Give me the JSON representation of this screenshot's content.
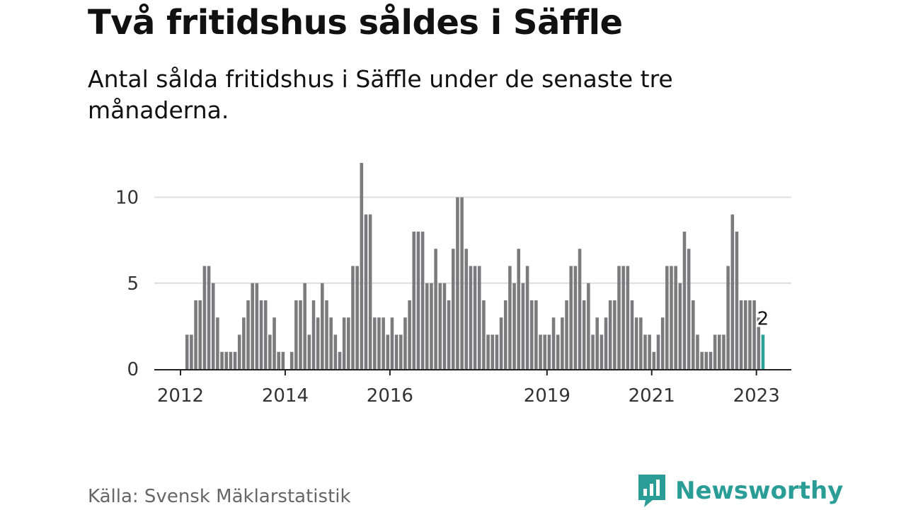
{
  "title": "Två fritidshus såldes i Säffle",
  "subtitle": "Antal sålda fritidshus i Säffle under de senaste tre månaderna.",
  "source": "Källa: Svensk Mäklarstatistik",
  "brand": "Newsworthy",
  "colors": {
    "bar": "#7b7a7c",
    "highlight": "#2aa198",
    "grid": "#dddddd",
    "axis": "#222222",
    "brand": "#2a9d96"
  },
  "chart_data": {
    "type": "bar",
    "title": "Två fritidshus såldes i Säffle",
    "xlabel": "",
    "ylabel": "",
    "ylim": [
      0,
      12
    ],
    "yticks": [
      0,
      5,
      10
    ],
    "xlim": [
      "2011-07",
      "2023-08"
    ],
    "xticks": [
      "2012",
      "2014",
      "2016",
      "2019",
      "2021",
      "2023"
    ],
    "grid": true,
    "legend": "none",
    "highlight": {
      "x": "2023-02",
      "value": 2,
      "label": "2"
    },
    "x": [
      "2012-02",
      "2012-03",
      "2012-04",
      "2012-05",
      "2012-06",
      "2012-07",
      "2012-08",
      "2012-09",
      "2012-10",
      "2012-11",
      "2012-12",
      "2013-01",
      "2013-02",
      "2013-03",
      "2013-04",
      "2013-05",
      "2013-06",
      "2013-07",
      "2013-08",
      "2013-09",
      "2013-10",
      "2013-11",
      "2013-12",
      "2014-01",
      "2014-02",
      "2014-03",
      "2014-04",
      "2014-05",
      "2014-06",
      "2014-07",
      "2014-08",
      "2014-09",
      "2014-10",
      "2014-11",
      "2014-12",
      "2015-01",
      "2015-02",
      "2015-03",
      "2015-04",
      "2015-05",
      "2015-06",
      "2015-07",
      "2015-08",
      "2015-09",
      "2015-10",
      "2015-11",
      "2015-12",
      "2016-01",
      "2016-02",
      "2016-03",
      "2016-04",
      "2016-05",
      "2016-06",
      "2016-07",
      "2016-08",
      "2016-09",
      "2016-10",
      "2016-11",
      "2016-12",
      "2017-01",
      "2017-02",
      "2017-03",
      "2017-04",
      "2017-05",
      "2017-06",
      "2017-07",
      "2017-08",
      "2017-09",
      "2017-10",
      "2017-11",
      "2017-12",
      "2018-01",
      "2018-02",
      "2018-03",
      "2018-04",
      "2018-05",
      "2018-06",
      "2018-07",
      "2018-08",
      "2018-09",
      "2018-10",
      "2018-11",
      "2018-12",
      "2019-01",
      "2019-02",
      "2019-03",
      "2019-04",
      "2019-05",
      "2019-06",
      "2019-07",
      "2019-08",
      "2019-09",
      "2019-10",
      "2019-11",
      "2019-12",
      "2020-01",
      "2020-02",
      "2020-03",
      "2020-04",
      "2020-05",
      "2020-06",
      "2020-07",
      "2020-08",
      "2020-09",
      "2020-10",
      "2020-11",
      "2020-12",
      "2021-01",
      "2021-02",
      "2021-03",
      "2021-04",
      "2021-05",
      "2021-06",
      "2021-07",
      "2021-08",
      "2021-09",
      "2021-10",
      "2021-11",
      "2021-12",
      "2022-01",
      "2022-02",
      "2022-03",
      "2022-04",
      "2022-05",
      "2022-06",
      "2022-07",
      "2022-08",
      "2022-09",
      "2022-10",
      "2022-11",
      "2022-12",
      "2023-01",
      "2023-02"
    ],
    "values": [
      2,
      2,
      4,
      4,
      6,
      6,
      5,
      3,
      1,
      1,
      1,
      1,
      2,
      3,
      4,
      5,
      5,
      4,
      4,
      2,
      3,
      1,
      1,
      0,
      1,
      4,
      4,
      5,
      2,
      4,
      3,
      5,
      4,
      3,
      2,
      1,
      3,
      3,
      6,
      6,
      12,
      9,
      9,
      3,
      3,
      3,
      2,
      3,
      2,
      2,
      3,
      4,
      8,
      8,
      8,
      5,
      5,
      7,
      5,
      5,
      4,
      7,
      10,
      10,
      7,
      6,
      6,
      6,
      4,
      2,
      2,
      2,
      3,
      4,
      6,
      5,
      7,
      5,
      6,
      4,
      4,
      2,
      2,
      2,
      3,
      2,
      3,
      4,
      6,
      6,
      7,
      4,
      5,
      2,
      3,
      2,
      3,
      4,
      4,
      6,
      6,
      6,
      4,
      3,
      3,
      2,
      2,
      1,
      2,
      3,
      6,
      6,
      6,
      5,
      8,
      7,
      4,
      2,
      1,
      1,
      1,
      2,
      2,
      2,
      6,
      9,
      8,
      4,
      4,
      4,
      4,
      3,
      2
    ]
  }
}
